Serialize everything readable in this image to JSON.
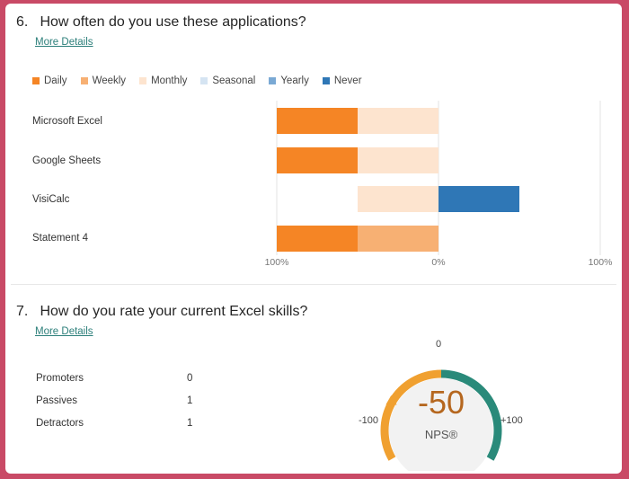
{
  "q6": {
    "number": "6.",
    "title": "How often do you use these applications?",
    "more_details": "More Details",
    "legend": [
      {
        "label": "Daily",
        "color": "#f58525"
      },
      {
        "label": "Weekly",
        "color": "#f7b073"
      },
      {
        "label": "Monthly",
        "color": "#fde4cf"
      },
      {
        "label": "Seasonal",
        "color": "#d5e4f2"
      },
      {
        "label": "Yearly",
        "color": "#7aa9d4"
      },
      {
        "label": "Never",
        "color": "#2f77b6"
      }
    ],
    "rows": [
      "Microsoft Excel",
      "Google Sheets",
      "VisiCalc",
      "Statement 4"
    ],
    "axis_labels": [
      "100%",
      "0%",
      "100%"
    ]
  },
  "chart_data": {
    "type": "bar",
    "orientation": "horizontal-diverging",
    "categories": [
      "Microsoft Excel",
      "Google Sheets",
      "VisiCalc",
      "Statement 4"
    ],
    "series": [
      {
        "name": "Daily",
        "values": [
          50,
          50,
          0,
          50
        ],
        "side": "left"
      },
      {
        "name": "Weekly",
        "values": [
          0,
          0,
          0,
          50
        ],
        "side": "left"
      },
      {
        "name": "Monthly",
        "values": [
          50,
          50,
          50,
          0
        ],
        "side": "left"
      },
      {
        "name": "Seasonal",
        "values": [
          0,
          0,
          0,
          0
        ],
        "side": "right"
      },
      {
        "name": "Yearly",
        "values": [
          0,
          0,
          0,
          0
        ],
        "side": "right"
      },
      {
        "name": "Never",
        "values": [
          0,
          0,
          50,
          0
        ],
        "side": "right"
      }
    ],
    "xlim": [
      -100,
      100
    ],
    "xticks": [
      "100%",
      "0%",
      "100%"
    ],
    "legend_position": "top-left"
  },
  "q7": {
    "number": "7.",
    "title": "How do you rate your current Excel skills?",
    "more_details": "More Details",
    "stats": [
      {
        "label": "Promoters",
        "value": "0"
      },
      {
        "label": "Passives",
        "value": "1"
      },
      {
        "label": "Detractors",
        "value": "1"
      }
    ],
    "nps": {
      "score": "-50",
      "score_number": -50,
      "caption": "NPS®",
      "min_label": "-100",
      "mid_label": "0",
      "max_label": "+100",
      "negative_color": "#f0a030",
      "positive_color": "#2a8a7a",
      "score_color": "#b5671f"
    }
  }
}
